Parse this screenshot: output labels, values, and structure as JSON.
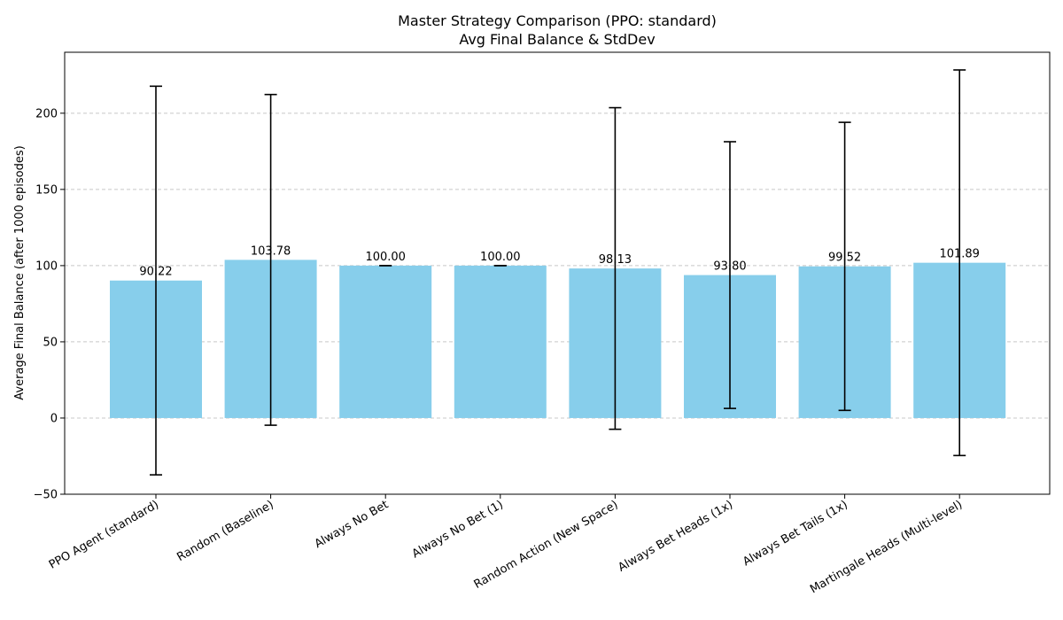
{
  "chart_data": {
    "type": "bar",
    "title": "Master Strategy Comparison (PPO: standard)",
    "subtitle": "Avg Final Balance & StdDev",
    "xlabel": "",
    "ylabel": "Average Final Balance (after 1000 episodes)",
    "categories": [
      "PPO Agent (standard)",
      "Random (Baseline)",
      "Always No Bet",
      "Always No Bet (1)",
      "Random Action (New Space)",
      "Always Bet Heads (1x)",
      "Always Bet Tails (1x)",
      "Martingale Heads (Multi-level)"
    ],
    "values": [
      90.22,
      103.78,
      100.0,
      100.0,
      98.13,
      93.8,
      99.52,
      101.89
    ],
    "value_labels": [
      "90.22",
      "103.78",
      "100.00",
      "100.00",
      "98.13",
      "93.80",
      "99.52",
      "101.89"
    ],
    "stddev": [
      127.5,
      108.5,
      0.0,
      0.0,
      105.5,
      87.5,
      94.5,
      126.5
    ],
    "ylim": [
      -50,
      240
    ],
    "yticks": [
      -50,
      0,
      50,
      100,
      150,
      200
    ],
    "ytick_labels": [
      "−50",
      "0",
      "50",
      "100",
      "150",
      "200"
    ],
    "grid": "y-dashed",
    "bar_color": "#87ceeb",
    "error_color": "#000000",
    "grid_color": "#c8c8c8"
  }
}
